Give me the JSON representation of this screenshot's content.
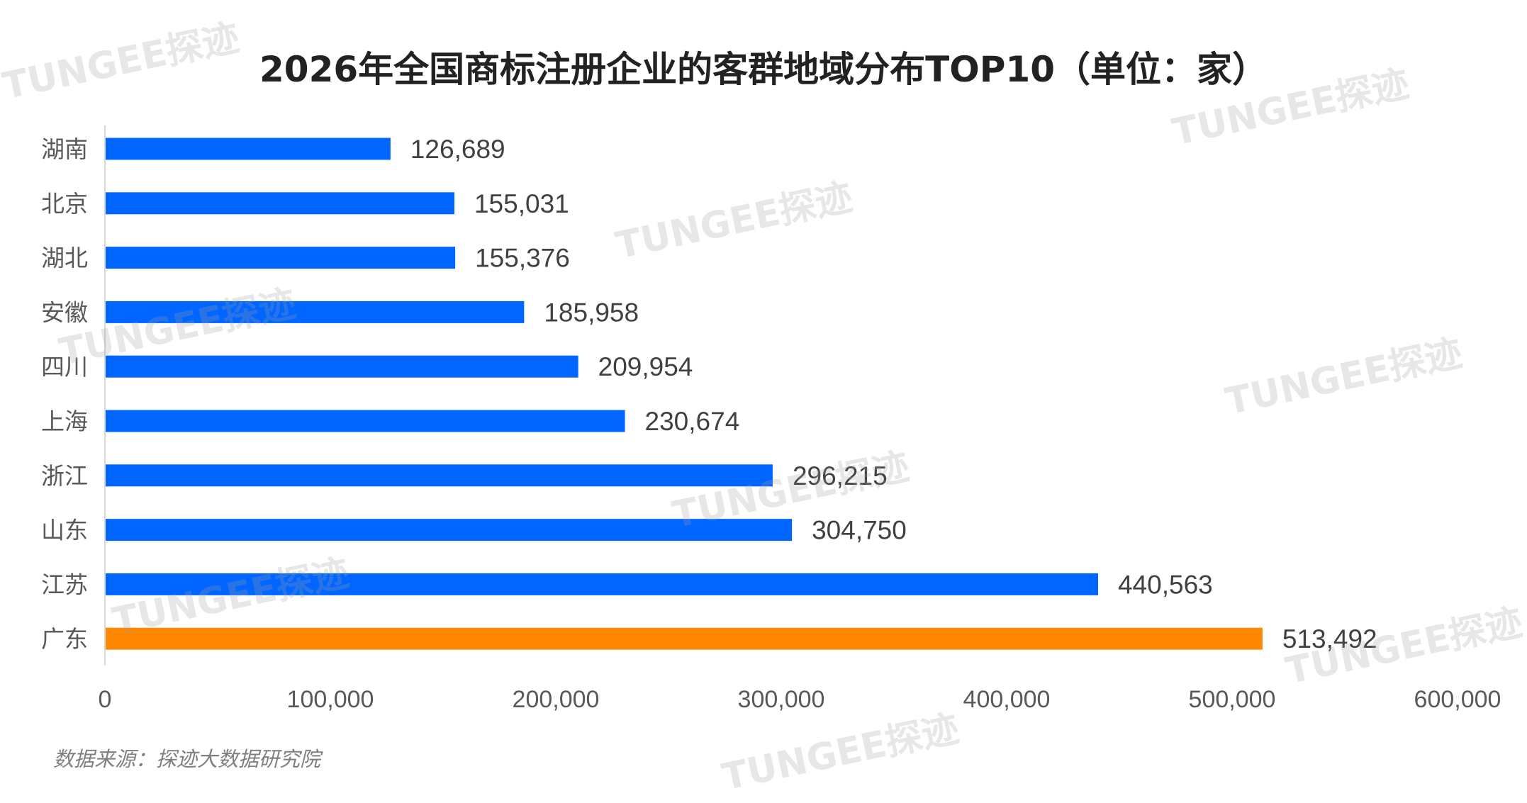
{
  "chart_data": {
    "type": "bar",
    "orientation": "horizontal",
    "title": "2026年全国商标注册企业的客群地域分布TOP10（单位：家）",
    "categories": [
      "湖南",
      "北京",
      "湖北",
      "安徽",
      "四川",
      "上海",
      "浙江",
      "山东",
      "江苏",
      "广东"
    ],
    "values": [
      126689,
      155031,
      155376,
      185958,
      209954,
      230674,
      296215,
      304750,
      440563,
      513492
    ],
    "value_labels": [
      "126,689",
      "155,031",
      "155,376",
      "185,958",
      "209,954",
      "230,674",
      "296,215",
      "304,750",
      "440,563",
      "513,492"
    ],
    "xlim": [
      0,
      600000
    ],
    "x_ticks": [
      "0",
      "100,000",
      "200,000",
      "300,000",
      "400,000",
      "500,000",
      "600,000"
    ],
    "grid": false,
    "colors": {
      "default": "#0066ff",
      "highlight": "#ff8800",
      "highlight_category": "广东"
    }
  },
  "source": "数据来源：探迹大数据研究院",
  "watermark": "TUNGEE探迹"
}
